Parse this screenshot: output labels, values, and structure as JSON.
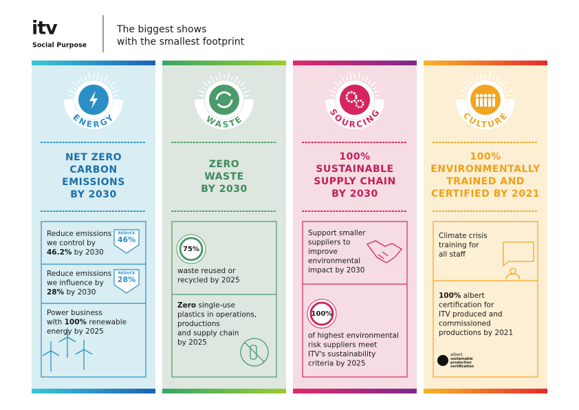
{
  "header": {
    "logo": "itv",
    "subtitle": "Social Purpose",
    "tagline": [
      "The biggest shows",
      "with the smallest footprint"
    ]
  },
  "columns": [
    {
      "label": "ENERGY",
      "accent": "#2a8fc4",
      "headline_color": "#1d6fa8",
      "background": "#d8eef3",
      "bar": [
        "#3cc7d6",
        "#1c63b0"
      ],
      "headline": [
        "NET ZERO",
        "CARBON",
        "EMISSIONS",
        "BY 2030"
      ],
      "items": [
        {
          "lines": [
            [
              {
                "text": "Reduce emissions"
              }
            ],
            [
              {
                "text": "we control by"
              }
            ],
            [
              {
                "text": "46.2%",
                "bold": true
              },
              {
                "text": " by 2030"
              }
            ]
          ],
          "badge": {
            "top": "REDUCE",
            "value": "46%"
          }
        },
        {
          "lines": [
            [
              {
                "text": "Reduce emissions"
              }
            ],
            [
              {
                "text": "we influence by"
              }
            ],
            [
              {
                "text": "28%",
                "bold": true
              },
              {
                "text": " by 2030"
              }
            ]
          ],
          "badge": {
            "top": "REDUCE",
            "value": "28%"
          }
        },
        {
          "lines": [
            [
              {
                "text": "Power business"
              }
            ],
            [
              {
                "text": "with "
              },
              {
                "text": "100%",
                "bold": true
              },
              {
                "text": " renewable"
              }
            ],
            [
              {
                "text": "energy by 2025"
              }
            ]
          ]
        }
      ]
    },
    {
      "label": "WASTE",
      "accent": "#4a9a6b",
      "headline_color": "#3d8a5a",
      "background": "#dde7e0",
      "bar": [
        "#3aa56a",
        "#9ccc2e"
      ],
      "headline": [
        "ZERO",
        "WASTE",
        "BY 2030"
      ],
      "items": [
        {
          "ring": "75%",
          "lines": [
            [
              {
                "text": "waste reused or"
              }
            ],
            [
              {
                "text": "recycled by 2025"
              }
            ]
          ]
        },
        {
          "lines": [
            [
              {
                "text": "Zero",
                "bold": true
              },
              {
                "text": " single-use"
              }
            ],
            [
              {
                "text": "plastics in operations,"
              }
            ],
            [
              {
                "text": "productions"
              }
            ],
            [
              {
                "text": "and supply chain"
              }
            ],
            [
              {
                "text": "by 2025"
              }
            ]
          ]
        }
      ]
    },
    {
      "label": "SOURCING",
      "accent": "#d5245f",
      "headline_color": "#c21d5a",
      "background": "#f5dde3",
      "bar": [
        "#e02a6c",
        "#7a2a8e"
      ],
      "headline": [
        "100%",
        "SUSTAINABLE",
        "SUPPLY CHAIN",
        "BY 2030"
      ],
      "items": [
        {
          "lines": [
            [
              {
                "text": "Support smaller"
              }
            ],
            [
              {
                "text": "suppliers to"
              }
            ],
            [
              {
                "text": "improve"
              }
            ],
            [
              {
                "text": "environmental"
              }
            ],
            [
              {
                "text": "impact by 2030"
              }
            ]
          ]
        },
        {
          "ring": "100%",
          "lines": [
            [
              {
                "text": "of highest environmental"
              }
            ],
            [
              {
                "text": "risk suppliers meet"
              }
            ],
            [
              {
                "text": "ITV's sustainability"
              }
            ],
            [
              {
                "text": "criteria by 2025"
              }
            ]
          ]
        }
      ]
    },
    {
      "label": "CULTURE",
      "accent": "#f2a51f",
      "headline_color": "#f0a019",
      "background": "#fcefd3",
      "bar": [
        "#f7b52b",
        "#e5282c"
      ],
      "headline": [
        "100%",
        "ENVIRONMENTALLY",
        "TRAINED AND",
        "CERTIFIED BY 2021"
      ],
      "items": [
        {
          "lines": [
            [
              {
                "text": "Climate crisis"
              }
            ],
            [
              {
                "text": "training for"
              }
            ],
            [
              {
                "text": "all staff"
              }
            ]
          ]
        },
        {
          "lines": [
            [
              {
                "text": "100%",
                "bold": true
              },
              {
                "text": " albert"
              }
            ],
            [
              {
                "text": "certification for"
              }
            ],
            [
              {
                "text": "ITV produced and"
              }
            ],
            [
              {
                "text": "commissioned"
              }
            ],
            [
              {
                "text": "productions by 2021"
              }
            ]
          ],
          "logo": [
            "albert",
            "sustainable",
            "production",
            "certification"
          ]
        }
      ]
    }
  ]
}
